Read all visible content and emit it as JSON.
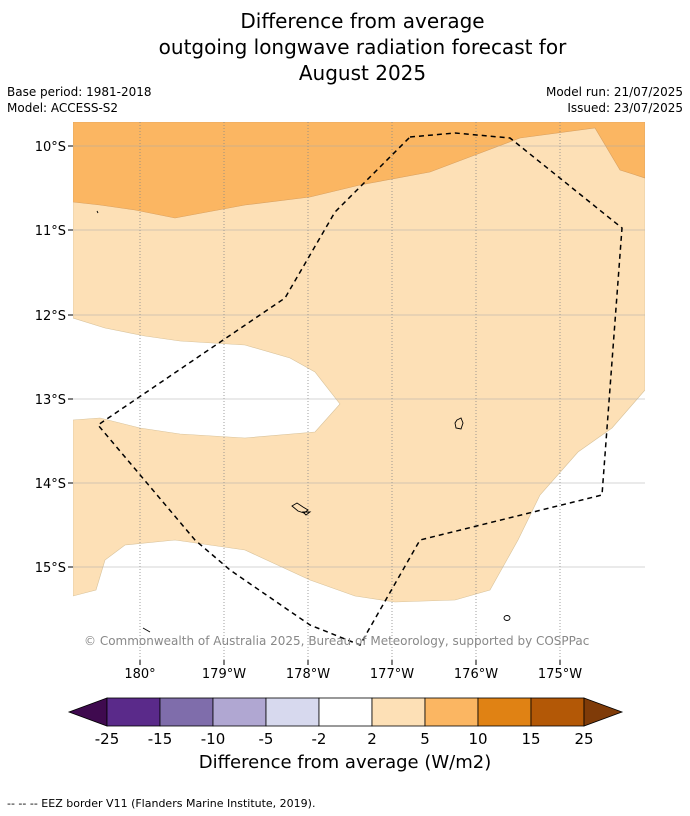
{
  "title": {
    "line1": "Difference from average",
    "line2": "outgoing longwave radiation forecast for",
    "line3": "August 2025"
  },
  "meta": {
    "base_period": "Base period: 1981-2018",
    "model": "Model: ACCESS-S2",
    "model_run": "Model run: 21/07/2025",
    "issued": "Issued: 23/07/2025"
  },
  "map": {
    "lat_labels": [
      "10°S",
      "11°S",
      "12°S",
      "13°S",
      "14°S",
      "15°S"
    ],
    "lon_labels": [
      "180°",
      "179°W",
      "178°W",
      "177°W",
      "176°W",
      "175°W"
    ],
    "copyright": "© Commonwealth of Australia 2025, Bureau of Meteorology, supported by COSPPac",
    "colors": {
      "band_5_10": "#fbb662",
      "band_2_5": "#fde0b6",
      "band_neutral": "#ffffff"
    }
  },
  "colorbar": {
    "ticks": [
      "-25",
      "-15",
      "-10",
      "-5",
      "-2",
      "2",
      "5",
      "10",
      "15",
      "25"
    ],
    "colors": [
      "#3f0a4f",
      "#5a2a8a",
      "#7f6dab",
      "#b0a7d2",
      "#d7d9ee",
      "#ffffff",
      "#fde0b6",
      "#fbb662",
      "#e08214",
      "#b35806",
      "#7f3b08"
    ],
    "label": "Difference from average (W/m2)"
  },
  "footnote": "--  --  -- EEZ border V11 (Flanders Marine Institute, 2019)."
}
